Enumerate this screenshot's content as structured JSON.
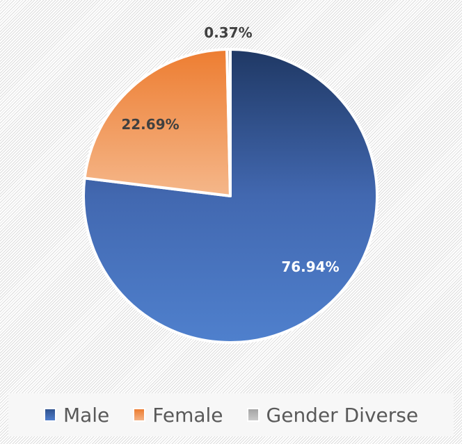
{
  "chart_data": {
    "type": "pie",
    "title": "",
    "categories": [
      "Male",
      "Female",
      "Gender Diverse"
    ],
    "values": [
      76.94,
      22.69,
      0.37
    ],
    "labels": [
      "76.94%",
      "22.69%",
      "0.37%"
    ],
    "colors": [
      "#4472C4",
      "#ED7D31",
      "#A5A5A5"
    ],
    "legend_position": "bottom",
    "start_angle_deg": 0,
    "direction": "clockwise"
  },
  "legend": {
    "items": [
      {
        "label": "Male",
        "color_top": "#2f528f",
        "color_bottom": "#4e7ccb"
      },
      {
        "label": "Female",
        "color_top": "#ed7d31",
        "color_bottom": "#f4b183"
      },
      {
        "label": "Gender Diverse",
        "color_top": "#a5a5a5",
        "color_bottom": "#c9c9c9"
      }
    ]
  }
}
